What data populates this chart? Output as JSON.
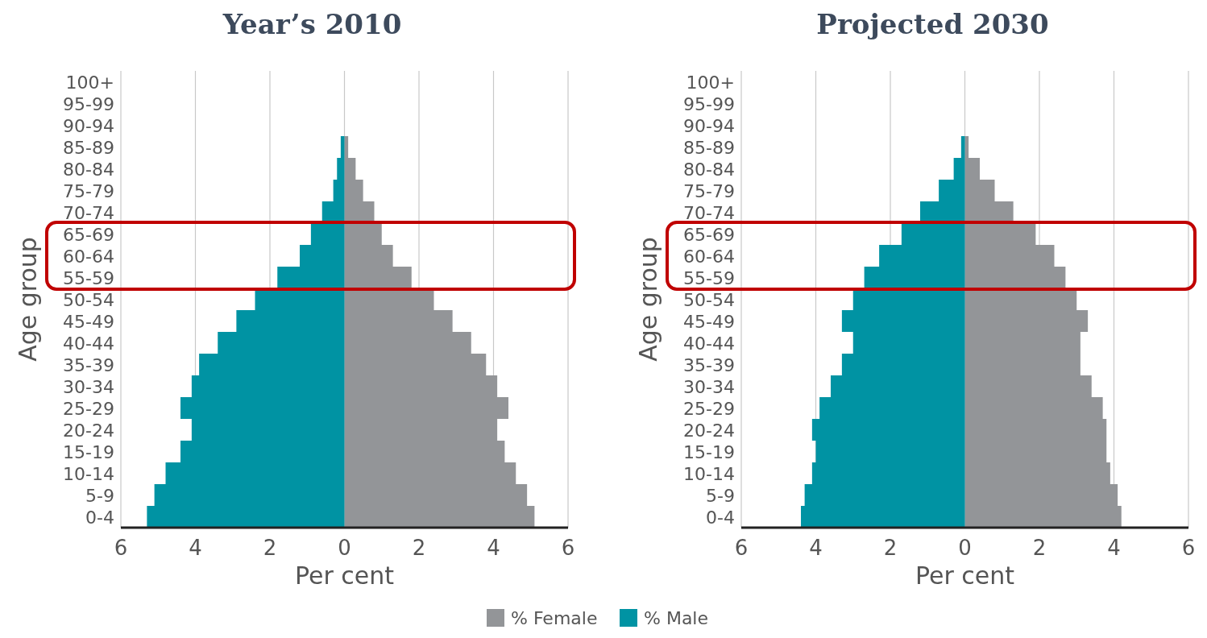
{
  "chart_data": [
    {
      "type": "bar",
      "orientation": "horizontal",
      "stacked": true,
      "title": "Year’s 2010",
      "xlabel": "Per cent",
      "ylabel": "Age group",
      "legend": "bottom",
      "categories": [
        "100+",
        "95-99",
        "90-94",
        "85-89",
        "80-84",
        "75-79",
        "70-74",
        "65-69",
        "60-64",
        "55-59",
        "50-54",
        "45-49",
        "40-44",
        "35-39",
        "30-34",
        "25-29",
        "20-24",
        "15-19",
        "10-14",
        "5-9",
        "0-4"
      ],
      "series": [
        {
          "name": "% Female",
          "color": "#939598",
          "values": [
            0,
            0,
            0,
            0.1,
            0.3,
            0.5,
            0.8,
            1.0,
            1.3,
            1.8,
            2.4,
            2.9,
            3.4,
            3.8,
            4.1,
            4.4,
            4.1,
            4.3,
            4.6,
            4.9,
            5.1
          ]
        },
        {
          "name": "% Male",
          "color": "#0093a3",
          "values": [
            0,
            0,
            0,
            -0.1,
            -0.2,
            -0.3,
            -0.6,
            -0.9,
            -1.2,
            -1.8,
            -2.4,
            -2.9,
            -3.4,
            -3.9,
            -4.1,
            -4.4,
            -4.1,
            -4.4,
            -4.8,
            -5.1,
            -5.3
          ]
        }
      ],
      "xlim": [
        -6,
        6
      ],
      "xticks": [
        {
          "value": -6,
          "label": "6"
        },
        {
          "value": -4,
          "label": "4"
        },
        {
          "value": -2,
          "label": "2"
        },
        0,
        2,
        4,
        6
      ],
      "grid": "x"
    },
    {
      "type": "bar",
      "orientation": "horizontal",
      "stacked": true,
      "title": "Projected 2030",
      "xlabel": "Per cent",
      "ylabel": "Age group",
      "categories": [
        "100+",
        "95-99",
        "90-94",
        "85-89",
        "80-84",
        "75-79",
        "70-74",
        "65-69",
        "60-64",
        "55-59",
        "50-54",
        "45-49",
        "40-44",
        "35-39",
        "30-34",
        "25-29",
        "20-24",
        "15-19",
        "10-14",
        "5-9",
        "0-4"
      ],
      "series": [
        {
          "color": "#939598",
          "values": [
            0,
            0,
            0,
            0.1,
            0.4,
            0.8,
            1.3,
            1.9,
            2.4,
            2.7,
            3.0,
            3.3,
            3.1,
            3.1,
            3.4,
            3.7,
            3.8,
            3.8,
            3.9,
            4.1,
            4.2
          ]
        },
        {
          "color": "#0093a3",
          "values": [
            0,
            0,
            0,
            -0.1,
            -0.3,
            -0.7,
            -1.2,
            -1.7,
            -2.3,
            -2.7,
            -3.0,
            -3.3,
            -3.0,
            -3.3,
            -3.6,
            -3.9,
            -4.1,
            -4.0,
            -4.1,
            -4.3,
            -4.4
          ]
        }
      ],
      "xlim": [
        -6,
        6
      ],
      "xticks": [
        {
          "value": -6,
          "label": "6"
        },
        {
          "value": -4,
          "label": "4"
        },
        {
          "value": -2,
          "label": "2"
        },
        0,
        2,
        4,
        6
      ],
      "grid": "x"
    }
  ]
}
